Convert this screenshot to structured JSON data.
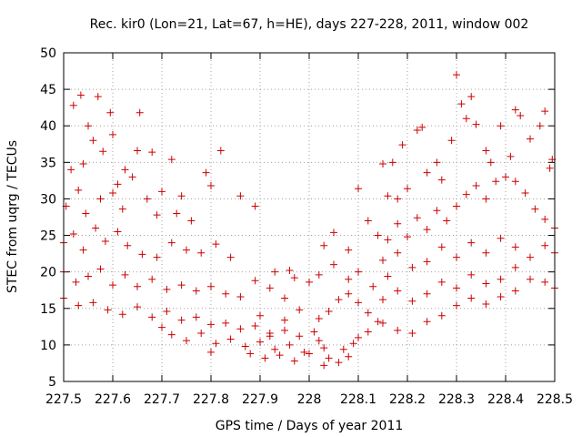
{
  "chart_data": {
    "type": "scatter",
    "title": "Rec. kir0 (Lon=21, Lat=67, h=HE), days 227-228, 2011, window 002",
    "xlabel": "GPS time / Days of year 2011",
    "ylabel": "STEC from uqrg / TECUs",
    "xlim": [
      227.5,
      228.5
    ],
    "ylim": [
      5,
      50
    ],
    "grid": true,
    "marker": "plus",
    "color": "#cc0000",
    "x_ticks": [
      "227.5",
      "227.6",
      "227.7",
      "227.8",
      "227.9",
      "228",
      "228.1",
      "228.2",
      "228.3",
      "228.4",
      "228.5"
    ],
    "y_ticks": [
      "5",
      "10",
      "15",
      "20",
      "25",
      "30",
      "35",
      "40",
      "45",
      "50"
    ],
    "points": [
      [
        227.52,
        42.8
      ],
      [
        227.535,
        44.2
      ],
      [
        227.55,
        40.0
      ],
      [
        227.57,
        44.0
      ],
      [
        227.58,
        36.5
      ],
      [
        227.595,
        41.8
      ],
      [
        227.6,
        38.8
      ],
      [
        227.655,
        41.8
      ],
      [
        227.61,
        32.0
      ],
      [
        227.56,
        38.0
      ],
      [
        227.515,
        34.0
      ],
      [
        227.54,
        34.8
      ],
      [
        227.625,
        34.0
      ],
      [
        227.64,
        33.0
      ],
      [
        227.65,
        36.6
      ],
      [
        227.68,
        36.4
      ],
      [
        227.7,
        31.0
      ],
      [
        227.72,
        35.4
      ],
      [
        227.79,
        33.6
      ],
      [
        227.82,
        36.6
      ],
      [
        227.74,
        30.4
      ],
      [
        227.8,
        31.8
      ],
      [
        227.86,
        30.4
      ],
      [
        227.89,
        29.0
      ],
      [
        227.505,
        29.0
      ],
      [
        227.53,
        31.2
      ],
      [
        227.545,
        28.0
      ],
      [
        227.575,
        30.0
      ],
      [
        227.6,
        30.8
      ],
      [
        227.62,
        28.6
      ],
      [
        227.67,
        30.0
      ],
      [
        227.69,
        27.8
      ],
      [
        227.73,
        28.0
      ],
      [
        227.76,
        27.0
      ],
      [
        227.5,
        24.0
      ],
      [
        227.52,
        25.2
      ],
      [
        227.54,
        23.0
      ],
      [
        227.565,
        26.0
      ],
      [
        227.585,
        24.2
      ],
      [
        227.61,
        25.5
      ],
      [
        227.63,
        23.6
      ],
      [
        227.66,
        22.4
      ],
      [
        227.69,
        22.0
      ],
      [
        227.72,
        24.0
      ],
      [
        227.75,
        23.0
      ],
      [
        227.78,
        22.6
      ],
      [
        227.81,
        23.8
      ],
      [
        227.84,
        22.0
      ],
      [
        227.5,
        20.0
      ],
      [
        227.525,
        18.6
      ],
      [
        227.55,
        19.4
      ],
      [
        227.575,
        20.4
      ],
      [
        227.6,
        18.2
      ],
      [
        227.625,
        19.6
      ],
      [
        227.65,
        18.0
      ],
      [
        227.68,
        19.0
      ],
      [
        227.71,
        17.6
      ],
      [
        227.74,
        18.2
      ],
      [
        227.77,
        17.4
      ],
      [
        227.8,
        18.0
      ],
      [
        227.83,
        17.0
      ],
      [
        227.86,
        16.6
      ],
      [
        227.89,
        18.8
      ],
      [
        227.92,
        17.8
      ],
      [
        227.95,
        16.4
      ],
      [
        227.5,
        16.4
      ],
      [
        227.53,
        15.4
      ],
      [
        227.56,
        15.8
      ],
      [
        227.59,
        14.8
      ],
      [
        227.62,
        14.2
      ],
      [
        227.65,
        15.2
      ],
      [
        227.68,
        13.8
      ],
      [
        227.71,
        14.6
      ],
      [
        227.74,
        13.4
      ],
      [
        227.77,
        13.8
      ],
      [
        227.8,
        12.8
      ],
      [
        227.83,
        13.0
      ],
      [
        227.86,
        12.2
      ],
      [
        227.89,
        12.6
      ],
      [
        227.92,
        11.6
      ],
      [
        227.95,
        12.0
      ],
      [
        227.98,
        11.2
      ],
      [
        227.7,
        12.4
      ],
      [
        227.72,
        11.4
      ],
      [
        227.75,
        10.6
      ],
      [
        227.78,
        11.6
      ],
      [
        227.81,
        10.2
      ],
      [
        227.84,
        10.8
      ],
      [
        227.87,
        9.8
      ],
      [
        227.9,
        10.4
      ],
      [
        227.93,
        9.4
      ],
      [
        227.96,
        10.0
      ],
      [
        227.99,
        9.0
      ],
      [
        227.8,
        9.0
      ],
      [
        227.88,
        8.8
      ],
      [
        227.91,
        8.2
      ],
      [
        227.94,
        8.6
      ],
      [
        227.97,
        7.8
      ],
      [
        227.92,
        11.2
      ],
      [
        227.95,
        13.4
      ],
      [
        227.98,
        14.8
      ],
      [
        227.9,
        14.0
      ],
      [
        227.93,
        20.0
      ],
      [
        227.96,
        20.2
      ],
      [
        227.97,
        19.2
      ],
      [
        228.0,
        18.6
      ],
      [
        228.01,
        11.8
      ],
      [
        228.02,
        10.6
      ],
      [
        228.03,
        9.6
      ],
      [
        228.0,
        8.8
      ],
      [
        228.04,
        8.2
      ],
      [
        228.03,
        7.2
      ],
      [
        228.06,
        7.6
      ],
      [
        228.08,
        8.4
      ],
      [
        228.07,
        9.4
      ],
      [
        228.09,
        10.2
      ],
      [
        228.1,
        11.0
      ],
      [
        228.12,
        11.8
      ],
      [
        228.02,
        13.6
      ],
      [
        228.04,
        14.6
      ],
      [
        228.06,
        16.2
      ],
      [
        228.08,
        17.0
      ],
      [
        228.1,
        15.8
      ],
      [
        228.12,
        14.4
      ],
      [
        228.14,
        13.2
      ],
      [
        228.02,
        19.6
      ],
      [
        228.05,
        21.0
      ],
      [
        228.08,
        19.0
      ],
      [
        228.1,
        20.0
      ],
      [
        228.13,
        18.0
      ],
      [
        228.16,
        19.4
      ],
      [
        228.03,
        23.6
      ],
      [
        228.05,
        25.4
      ],
      [
        228.08,
        23.0
      ],
      [
        228.1,
        31.4
      ],
      [
        228.15,
        34.8
      ],
      [
        228.17,
        35.0
      ],
      [
        228.19,
        37.4
      ],
      [
        228.16,
        30.4
      ],
      [
        228.18,
        30.0
      ],
      [
        228.2,
        31.4
      ],
      [
        228.22,
        39.4
      ],
      [
        228.23,
        39.8
      ],
      [
        228.24,
        33.6
      ],
      [
        228.26,
        35.0
      ],
      [
        228.27,
        32.6
      ],
      [
        228.29,
        38.0
      ],
      [
        228.3,
        47.0
      ],
      [
        228.31,
        43.0
      ],
      [
        228.32,
        41.0
      ],
      [
        228.33,
        44.0
      ],
      [
        228.34,
        40.2
      ],
      [
        228.36,
        36.6
      ],
      [
        228.37,
        35.0
      ],
      [
        228.39,
        40.0
      ],
      [
        228.41,
        35.8
      ],
      [
        228.42,
        42.2
      ],
      [
        228.43,
        41.4
      ],
      [
        228.45,
        38.2
      ],
      [
        228.47,
        40.0
      ],
      [
        228.48,
        42.0
      ],
      [
        228.49,
        34.2
      ],
      [
        228.495,
        35.4
      ],
      [
        228.12,
        27.0
      ],
      [
        228.14,
        25.0
      ],
      [
        228.16,
        24.4
      ],
      [
        228.18,
        26.6
      ],
      [
        228.2,
        24.8
      ],
      [
        228.22,
        27.4
      ],
      [
        228.24,
        25.8
      ],
      [
        228.26,
        28.4
      ],
      [
        228.28,
        27.0
      ],
      [
        228.3,
        29.0
      ],
      [
        228.32,
        30.6
      ],
      [
        228.34,
        31.8
      ],
      [
        228.36,
        30.0
      ],
      [
        228.38,
        32.4
      ],
      [
        228.4,
        33.0
      ],
      [
        228.42,
        32.4
      ],
      [
        228.44,
        30.8
      ],
      [
        228.46,
        28.6
      ],
      [
        228.48,
        27.2
      ],
      [
        228.5,
        26.0
      ],
      [
        228.15,
        21.6
      ],
      [
        228.18,
        22.6
      ],
      [
        228.21,
        20.6
      ],
      [
        228.24,
        21.4
      ],
      [
        228.27,
        23.4
      ],
      [
        228.3,
        22.0
      ],
      [
        228.33,
        24.0
      ],
      [
        228.36,
        22.6
      ],
      [
        228.39,
        24.6
      ],
      [
        228.42,
        23.4
      ],
      [
        228.45,
        22.0
      ],
      [
        228.48,
        23.6
      ],
      [
        228.5,
        22.6
      ],
      [
        228.15,
        16.2
      ],
      [
        228.18,
        17.4
      ],
      [
        228.21,
        16.0
      ],
      [
        228.24,
        17.0
      ],
      [
        228.27,
        18.6
      ],
      [
        228.3,
        17.8
      ],
      [
        228.33,
        19.6
      ],
      [
        228.36,
        18.4
      ],
      [
        228.39,
        19.0
      ],
      [
        228.42,
        20.6
      ],
      [
        228.45,
        19.0
      ],
      [
        228.48,
        18.6
      ],
      [
        228.5,
        17.8
      ],
      [
        228.15,
        13.0
      ],
      [
        228.18,
        12.0
      ],
      [
        228.21,
        11.6
      ],
      [
        228.24,
        13.2
      ],
      [
        228.27,
        14.0
      ],
      [
        228.3,
        15.4
      ],
      [
        228.33,
        16.4
      ],
      [
        228.36,
        15.6
      ],
      [
        228.39,
        16.6
      ],
      [
        228.42,
        17.4
      ]
    ]
  }
}
